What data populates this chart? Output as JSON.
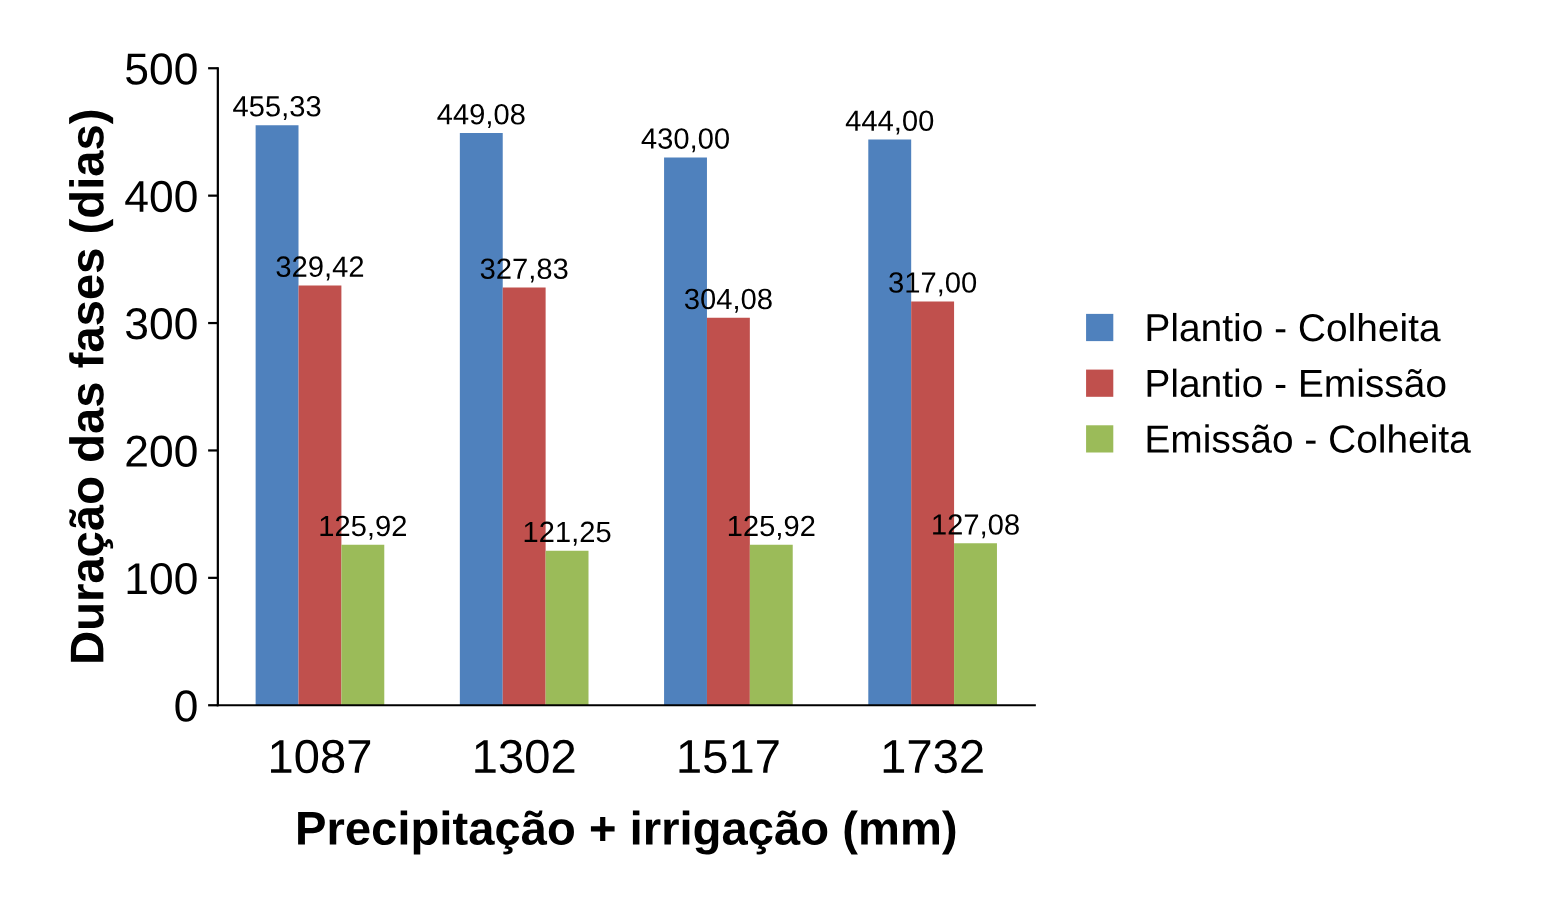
{
  "chart_data": {
    "type": "bar",
    "xlabel": "Precipitação + irrigação (mm)",
    "ylabel": "Duração das fases (dias)",
    "categories": [
      "1087",
      "1302",
      "1517",
      "1732"
    ],
    "series": [
      {
        "name": "Plantio - Colheita",
        "color": "#4f81bd",
        "values": [
          455.33,
          449.08,
          430.0,
          444.0
        ],
        "value_labels": [
          "455,33",
          "449,08",
          "430,00",
          "444,00"
        ]
      },
      {
        "name": "Plantio - Emissão",
        "color": "#c0504d",
        "values": [
          329.42,
          327.83,
          304.08,
          317.0
        ],
        "value_labels": [
          "329,42",
          "327,83",
          "304,08",
          "317,00"
        ]
      },
      {
        "name": "Emissão - Colheita",
        "color": "#9bbb59",
        "values": [
          125.92,
          121.25,
          125.92,
          127.08
        ],
        "value_labels": [
          "125,92",
          "121,25",
          "125,92",
          "127,08"
        ]
      }
    ],
    "ylim": [
      0,
      500
    ],
    "yticks": [
      0,
      100,
      200,
      300,
      400,
      500
    ],
    "grid": false,
    "legend": "right"
  }
}
